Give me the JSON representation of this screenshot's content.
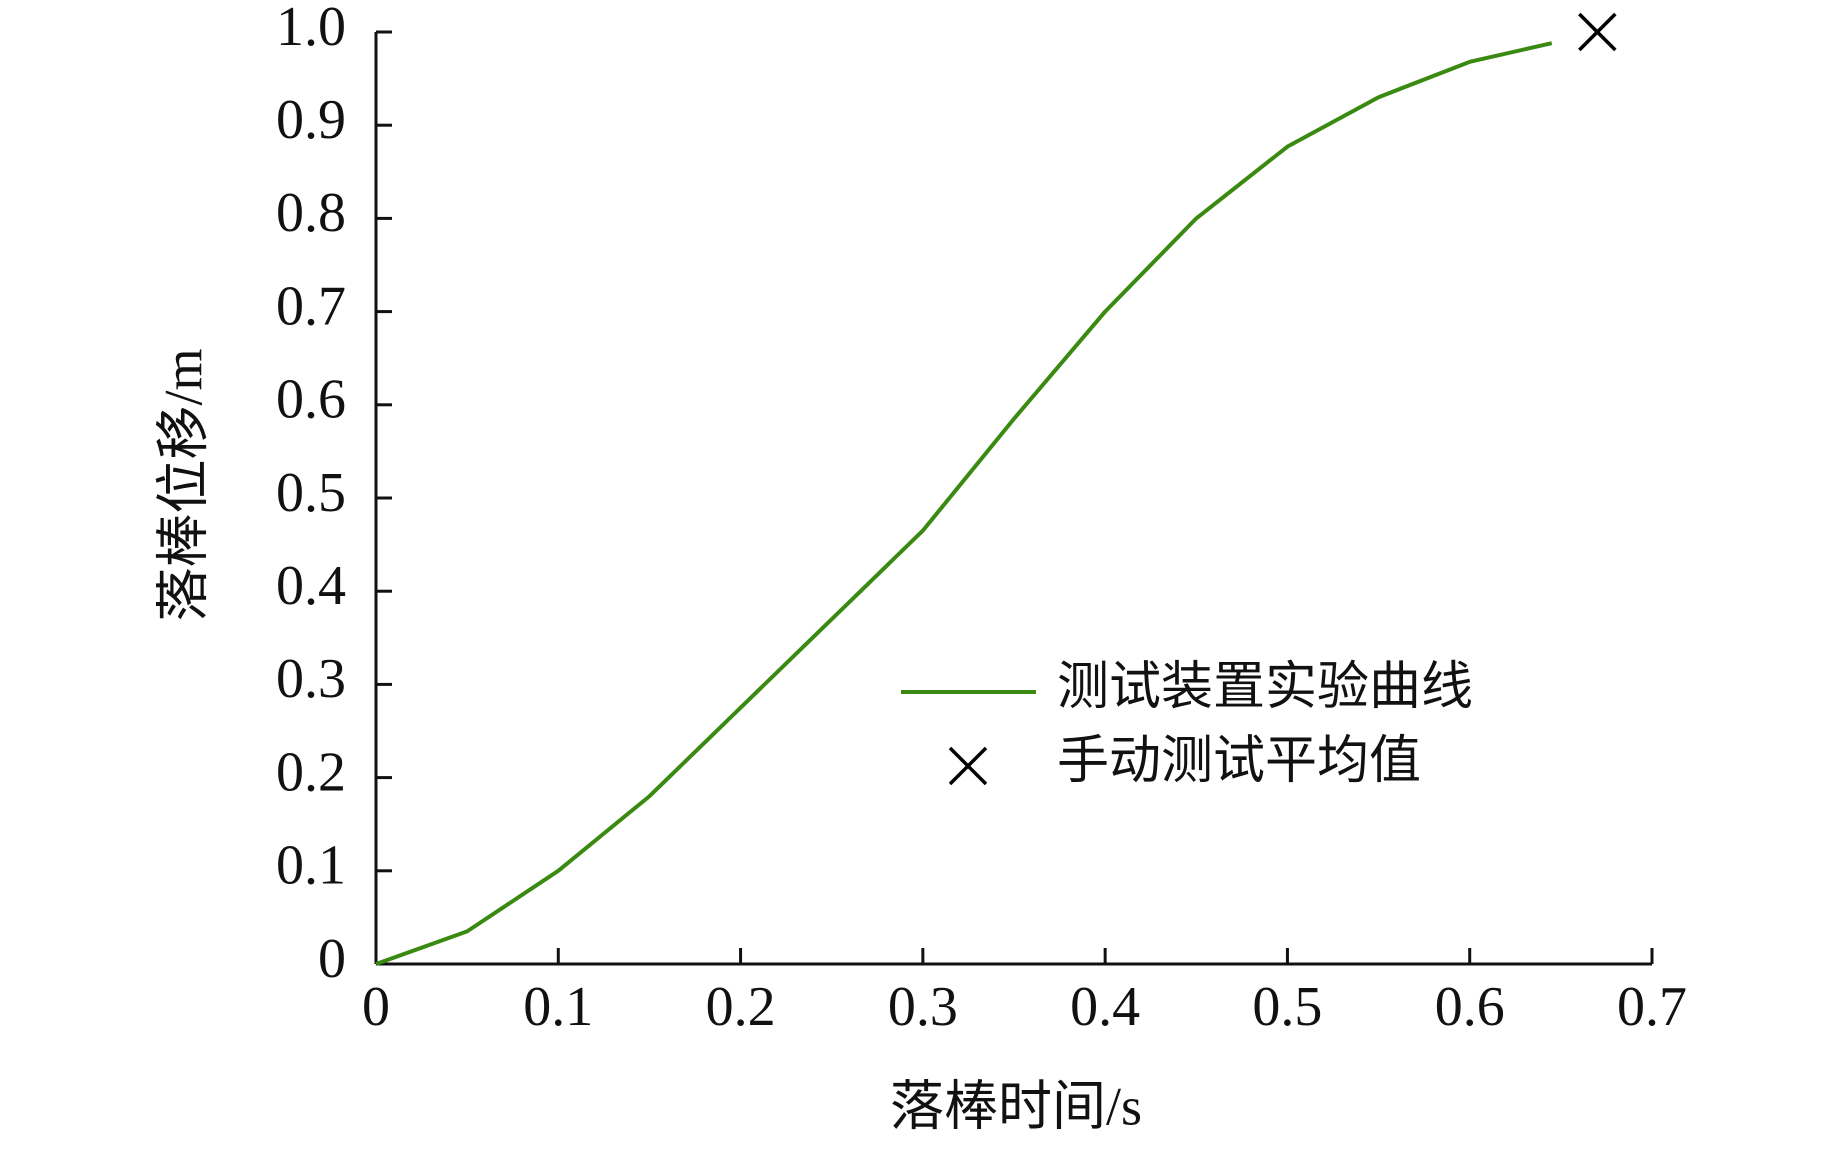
{
  "chart_data": {
    "type": "line",
    "xlabel": "落棒时间/s",
    "ylabel": "落棒位移/m",
    "xlim": [
      0,
      0.7
    ],
    "ylim": [
      0,
      1.0
    ],
    "xticks": [
      0,
      0.1,
      0.2,
      0.3,
      0.4,
      0.5,
      0.6,
      0.7
    ],
    "yticks": [
      0,
      0.1,
      0.2,
      0.3,
      0.4,
      0.5,
      0.6,
      0.7,
      0.8,
      0.9,
      {
        "value": 1,
        "label": "1.0"
      }
    ],
    "grid": false,
    "legend": "right",
    "series": [
      {
        "name": "测试装置实验曲线",
        "type": "line",
        "color": "#3a8a12",
        "x": [
          0,
          0.05,
          0.1,
          0.15,
          0.2,
          0.25,
          0.3,
          0.35,
          0.4,
          0.45,
          0.5,
          0.55,
          0.6,
          0.645
        ],
        "values": [
          0,
          0.035,
          0.1,
          0.18,
          0.275,
          0.37,
          0.465,
          0.585,
          0.7,
          0.8,
          0.877,
          0.93,
          0.968,
          0.988
        ]
      },
      {
        "name": "手动测试平均值",
        "type": "scatter",
        "marker": "x",
        "color": "#000000",
        "x": [
          0.67
        ],
        "values": [
          1.0
        ]
      }
    ]
  }
}
